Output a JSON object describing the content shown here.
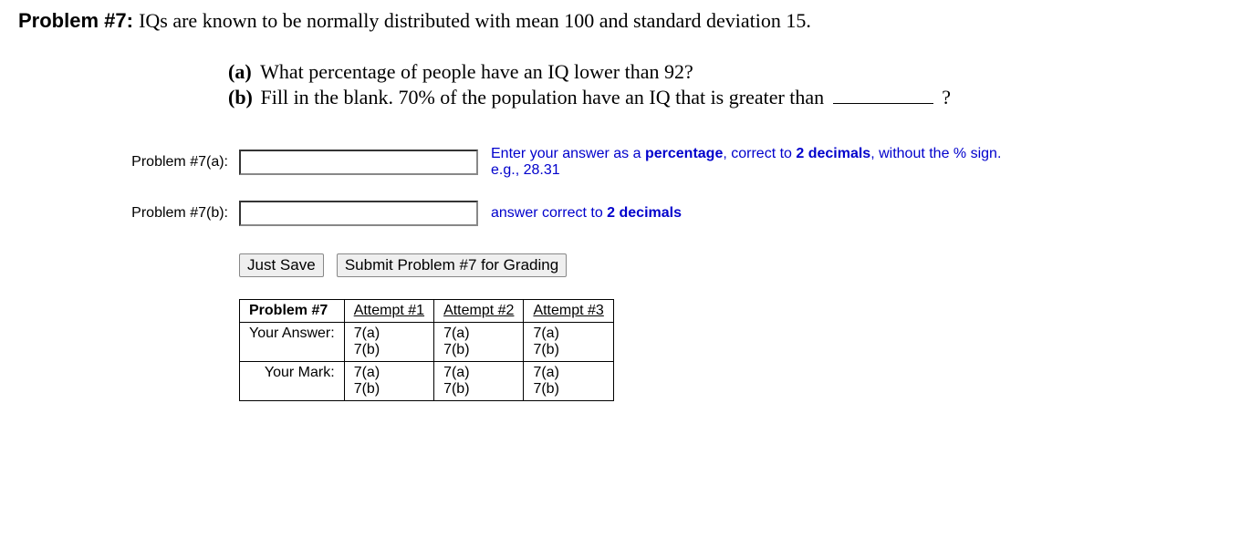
{
  "header": {
    "label": "Problem #7:",
    "text": "IQs are known to be normally distributed with mean 100 and standard deviation 15."
  },
  "parts": {
    "a": {
      "letter": "(a)",
      "text": "What percentage of people have an IQ lower than 92?"
    },
    "b": {
      "letter": "(b)",
      "text_before": "Fill in the blank. 70% of the population have an IQ that is greater than",
      "text_after": "?"
    }
  },
  "answers": {
    "a": {
      "label": "Problem #7(a):",
      "value": "",
      "hint_pre": "Enter your answer as a ",
      "hint_bold1": "percentage",
      "hint_mid": ", correct to ",
      "hint_bold2": "2 decimals",
      "hint_post": ", without the % sign. e.g., 28.31"
    },
    "b": {
      "label": "Problem #7(b):",
      "value": "",
      "hint_pre": "answer correct to ",
      "hint_bold": "2 decimals"
    }
  },
  "buttons": {
    "save": "Just Save",
    "submit": "Submit Problem #7 for Grading"
  },
  "table": {
    "corner": "Problem #7",
    "attempt_headers": [
      "Attempt #1",
      "Attempt #2",
      "Attempt #3"
    ],
    "row_labels": [
      "Your Answer:",
      "Your Mark:"
    ],
    "cell_parts": [
      "7(a)",
      "7(b)"
    ]
  }
}
